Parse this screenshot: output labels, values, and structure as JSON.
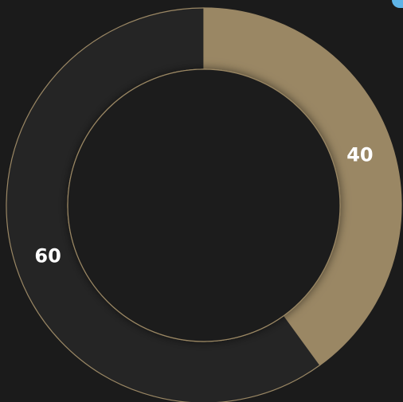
{
  "chart_data": {
    "type": "pie",
    "variant": "donut",
    "slices": [
      {
        "label": "40",
        "value": 40,
        "color": "#9a8764"
      },
      {
        "label": "60",
        "value": 60,
        "color": "#252525"
      }
    ],
    "start_angle_deg": 0,
    "direction": "clockwise",
    "stroke_color": "#9a8764",
    "hole_color": "#1b1b1b",
    "title": "",
    "legend": "none"
  }
}
